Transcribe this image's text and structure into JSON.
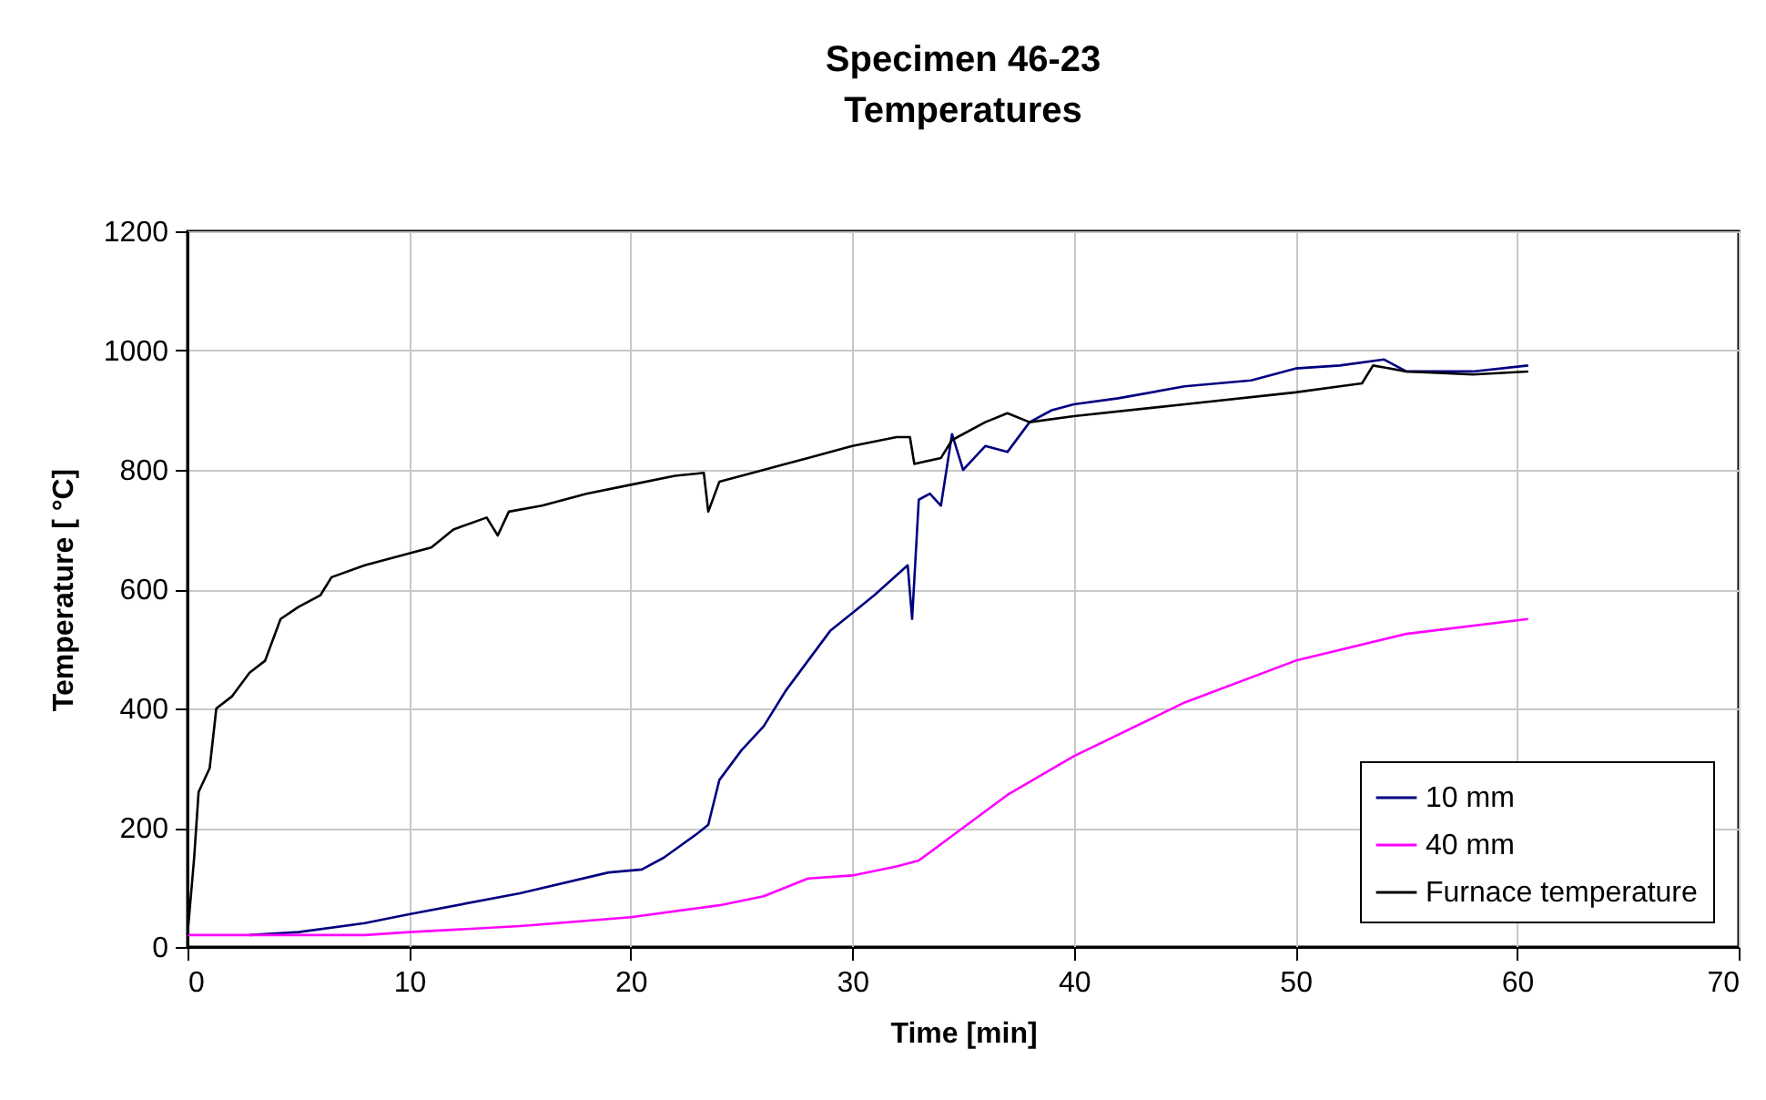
{
  "chart_data": {
    "type": "line",
    "title": "Specimen 46-23",
    "subtitle": "Temperatures",
    "xlabel": "Time [min]",
    "ylabel": "Temperature [  °C]",
    "xlim": [
      0,
      70
    ],
    "xticks": [
      0,
      10,
      20,
      30,
      40,
      50,
      60,
      70
    ],
    "ylim": [
      0,
      1200
    ],
    "yticks": [
      0,
      200,
      400,
      600,
      800,
      1000,
      1200
    ],
    "grid": true,
    "legend": "bottom right",
    "series": [
      {
        "name": "10 mm",
        "color": "#000080",
        "x": [
          2.8,
          5,
          8,
          10,
          15,
          19,
          20.5,
          21.5,
          23,
          23.5,
          24,
          25,
          26,
          27,
          28,
          29,
          30,
          31,
          32.5,
          32.7,
          33,
          33.5,
          34,
          34.5,
          35,
          36,
          37,
          38,
          39,
          40,
          42,
          45,
          48,
          50,
          52,
          54,
          55,
          58,
          60.5
        ],
        "values": [
          20,
          25,
          40,
          55,
          90,
          125,
          130,
          150,
          190,
          205,
          280,
          330,
          370,
          430,
          480,
          530,
          560,
          590,
          640,
          550,
          750,
          760,
          740,
          860,
          800,
          840,
          830,
          880,
          900,
          910,
          920,
          940,
          950,
          970,
          975,
          985,
          965,
          965,
          975
        ]
      },
      {
        "name": "40 mm",
        "color": "#ff00ff",
        "x": [
          0,
          8,
          10,
          15,
          20,
          24,
          26,
          28,
          30,
          32,
          33,
          35,
          37,
          40,
          45,
          50,
          55,
          60.5
        ],
        "values": [
          20,
          20,
          25,
          35,
          50,
          70,
          85,
          115,
          120,
          135,
          145,
          200,
          255,
          320,
          410,
          480,
          525,
          550
        ]
      },
      {
        "name": "Furnace temperature",
        "color": "#000000",
        "x": [
          0,
          0.3,
          0.5,
          1,
          1.3,
          2,
          2.8,
          3.5,
          4.2,
          5,
          6,
          6.5,
          8,
          10,
          11,
          12,
          13.5,
          14,
          14.5,
          16,
          18,
          20,
          22,
          23.3,
          23.5,
          24,
          26,
          28,
          30,
          32,
          32.6,
          32.8,
          34,
          34.5,
          36,
          37,
          38,
          40,
          45,
          50,
          52,
          53,
          53.5,
          55,
          58,
          60.5
        ],
        "values": [
          20,
          150,
          260,
          300,
          400,
          420,
          460,
          480,
          550,
          570,
          590,
          620,
          640,
          660,
          670,
          700,
          720,
          690,
          730,
          740,
          760,
          775,
          790,
          795,
          730,
          780,
          800,
          820,
          840,
          855,
          855,
          810,
          820,
          850,
          880,
          895,
          880,
          890,
          910,
          930,
          940,
          945,
          975,
          965,
          960,
          965
        ]
      }
    ]
  }
}
